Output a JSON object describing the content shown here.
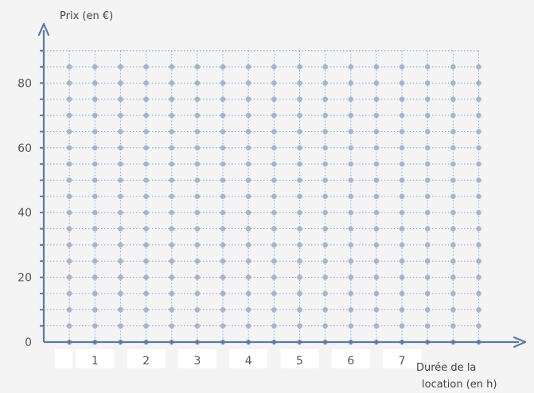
{
  "chart_data": {
    "type": "scatter",
    "title": "",
    "ylabel": "Prix (en €)",
    "xlabel_line1": "Durée de la",
    "xlabel_line2": "location (en h)",
    "x_tick_labels": [
      "1",
      "2",
      "3",
      "4",
      "5",
      "6",
      "7"
    ],
    "y_tick_labels": [
      "0",
      "20",
      "40",
      "60",
      "80"
    ],
    "y_ticks": [
      0,
      20,
      40,
      60,
      80
    ],
    "x_ticks": [
      1,
      2,
      3,
      4,
      5,
      6,
      7
    ],
    "xlim": [
      0,
      8.5
    ],
    "ylim": [
      0,
      90
    ],
    "grid": true,
    "grid_style": "dotted",
    "x_minor_step": 0.5,
    "y_minor_step": 5,
    "colors": {
      "axis": "#5b78a8",
      "grid": "#8ca2c6",
      "dot": "#a8b4c8",
      "background": "#f4f4f4",
      "label_background": "#ffffff"
    }
  }
}
